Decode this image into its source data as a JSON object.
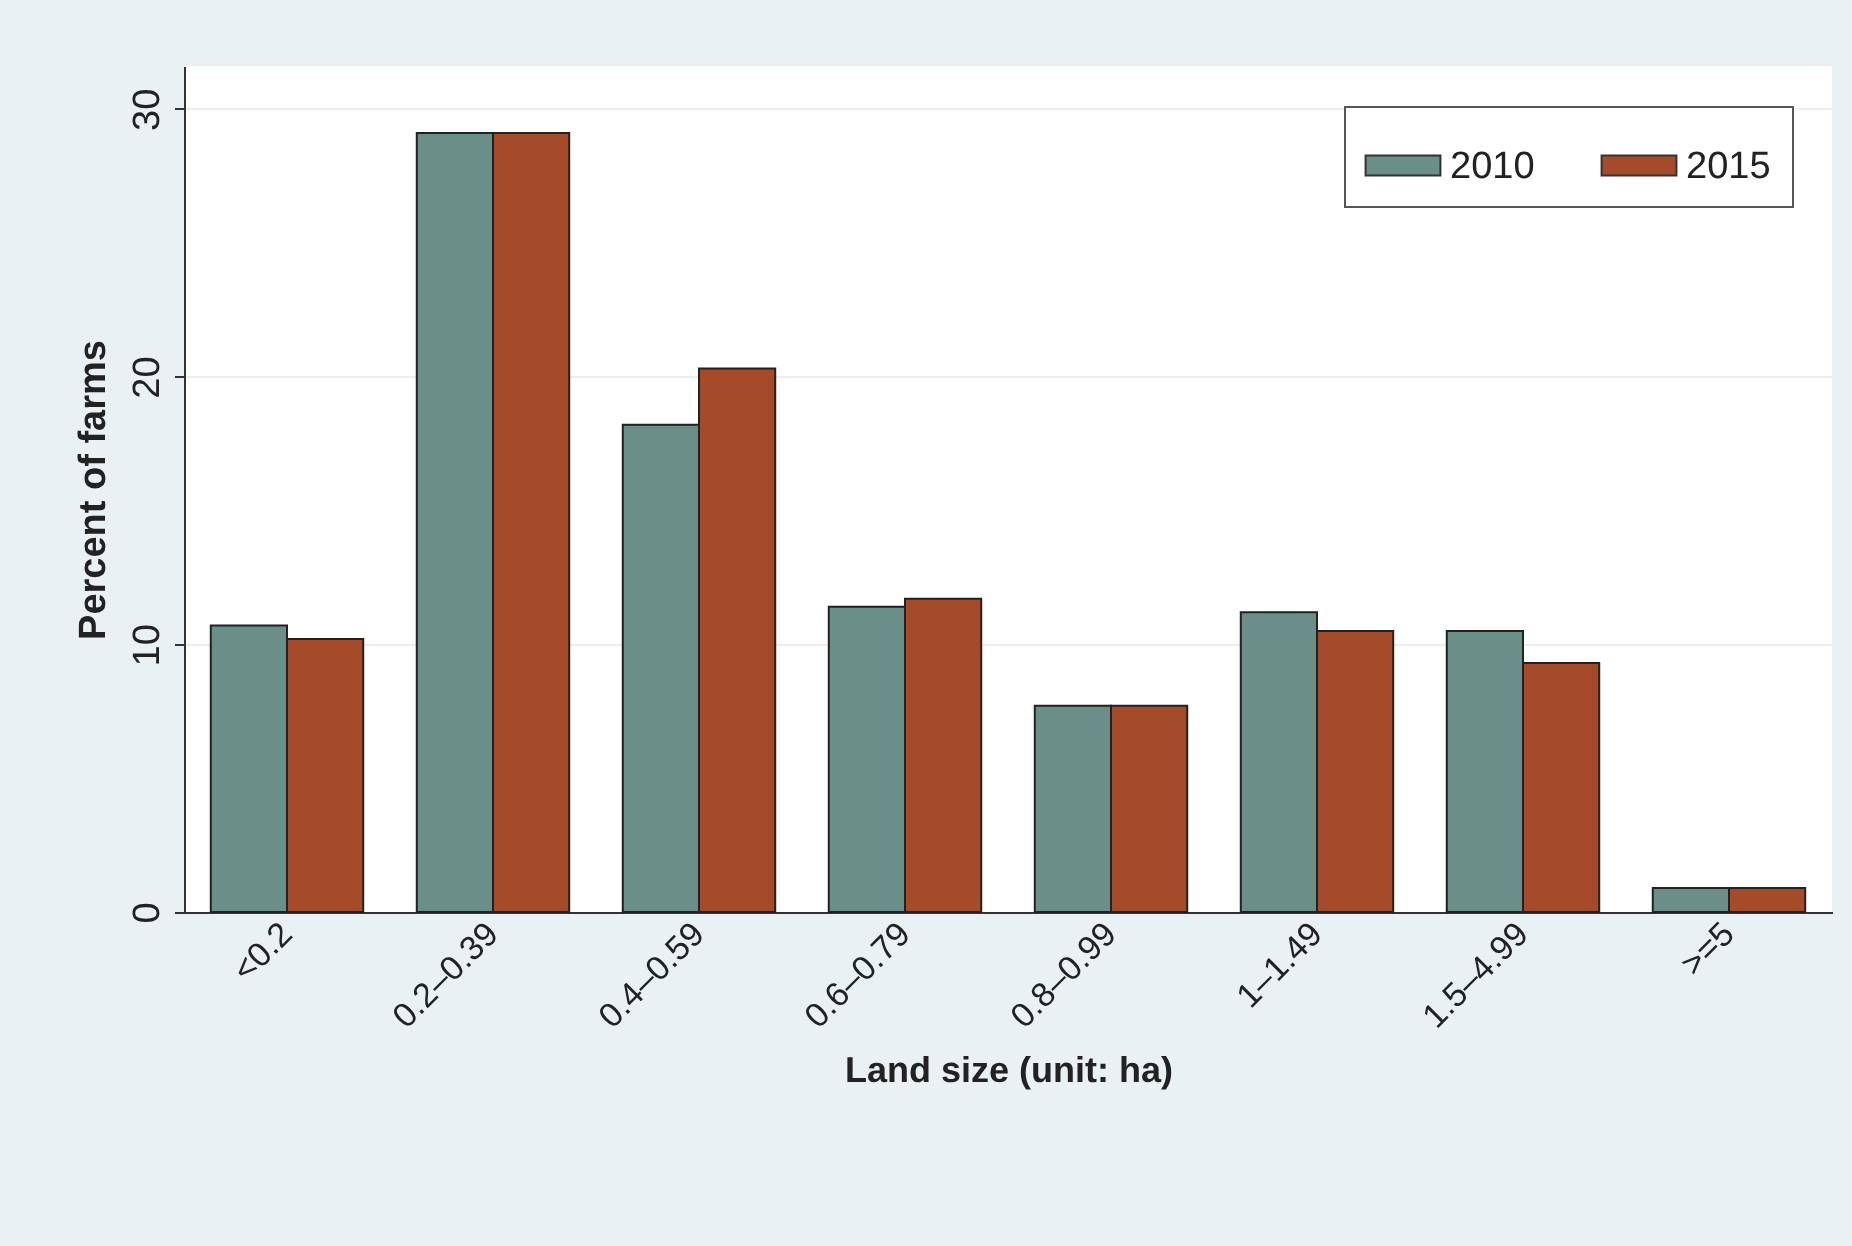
{
  "chart_data": {
    "type": "bar",
    "xlabel": "Land size (unit: ha)",
    "ylabel": "Percent of farms",
    "categories": [
      "<0.2",
      "0.2–0.39",
      "0.4–0.59",
      "0.6–0.79",
      "0.8–0.99",
      "1–1.49",
      "1.5–4.99",
      ">=5"
    ],
    "series": [
      {
        "name": "2010",
        "color": "#6a8f88",
        "values": [
          10.7,
          29.1,
          18.2,
          11.4,
          7.7,
          11.2,
          10.5,
          0.9
        ]
      },
      {
        "name": "2015",
        "color": "#a64b2a",
        "values": [
          10.2,
          29.1,
          20.3,
          11.7,
          7.7,
          10.5,
          9.3,
          0.9
        ]
      }
    ],
    "ylim": [
      0,
      31.6
    ],
    "yticks": [
      0,
      10,
      20,
      30
    ],
    "grid": "y",
    "legend": "top right"
  }
}
